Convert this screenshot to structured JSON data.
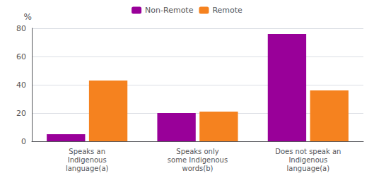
{
  "chart_data": {
    "type": "bar",
    "categories": [
      "Speaks an\nIndigenous\nlanguage(a)",
      "Speaks only\nsome Indigenous\nwords(b)",
      "Does not speak an\nIndigenous\nlanguage(a)"
    ],
    "series": [
      {
        "name": "Non-Remote",
        "color": "#990099",
        "values": [
          5,
          20,
          76
        ]
      },
      {
        "name": "Remote",
        "color": "#F5821F",
        "values": [
          43,
          21,
          36
        ]
      }
    ],
    "ylabel": "%",
    "ylim": [
      0,
      80
    ],
    "yticks": [
      0,
      20,
      40,
      60,
      80
    ],
    "grid": true,
    "legend": "top"
  }
}
